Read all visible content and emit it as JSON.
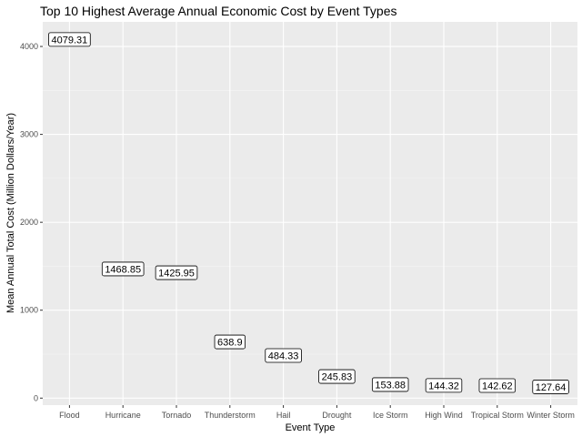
{
  "chart_data": {
    "type": "scatter",
    "title": "Top 10 Highest Average Annual Economic Cost by Event Types",
    "xlabel": "Event Type",
    "ylabel": "Mean Annual Total Cost (Million Dollars/Year)",
    "categories": [
      "Flood",
      "Hurricane",
      "Tornado",
      "Thunderstorm",
      "Hail",
      "Drought",
      "Ice Storm",
      "High Wind",
      "Tropical Storm",
      "Winter Storm"
    ],
    "values": [
      4079.31,
      1468.85,
      1425.95,
      638.9,
      484.33,
      245.83,
      153.88,
      144.32,
      142.62,
      127.64
    ],
    "data_labels": [
      "4079.31",
      "1468.85",
      "1425.95",
      "638.9",
      "484.33",
      "245.83",
      "153.88",
      "144.32",
      "142.62",
      "127.64"
    ],
    "ylim": [
      -80,
      4280
    ],
    "yticks": [
      0,
      1000,
      2000,
      3000,
      4000
    ],
    "ytick_labels": [
      "0",
      "1000",
      "2000",
      "3000",
      "4000"
    ],
    "minor_yticks": [
      500,
      1500,
      2500,
      3500
    ],
    "grid": true,
    "legend": "none",
    "colors": {
      "panel_bg": "#ebebeb",
      "grid_major": "#ffffff",
      "grid_minor": "#f5f5f5",
      "tick_text": "#4d4d4d",
      "tick_mark": "#333333",
      "label_fill": "#ffffff",
      "label_border": "#000000"
    }
  }
}
